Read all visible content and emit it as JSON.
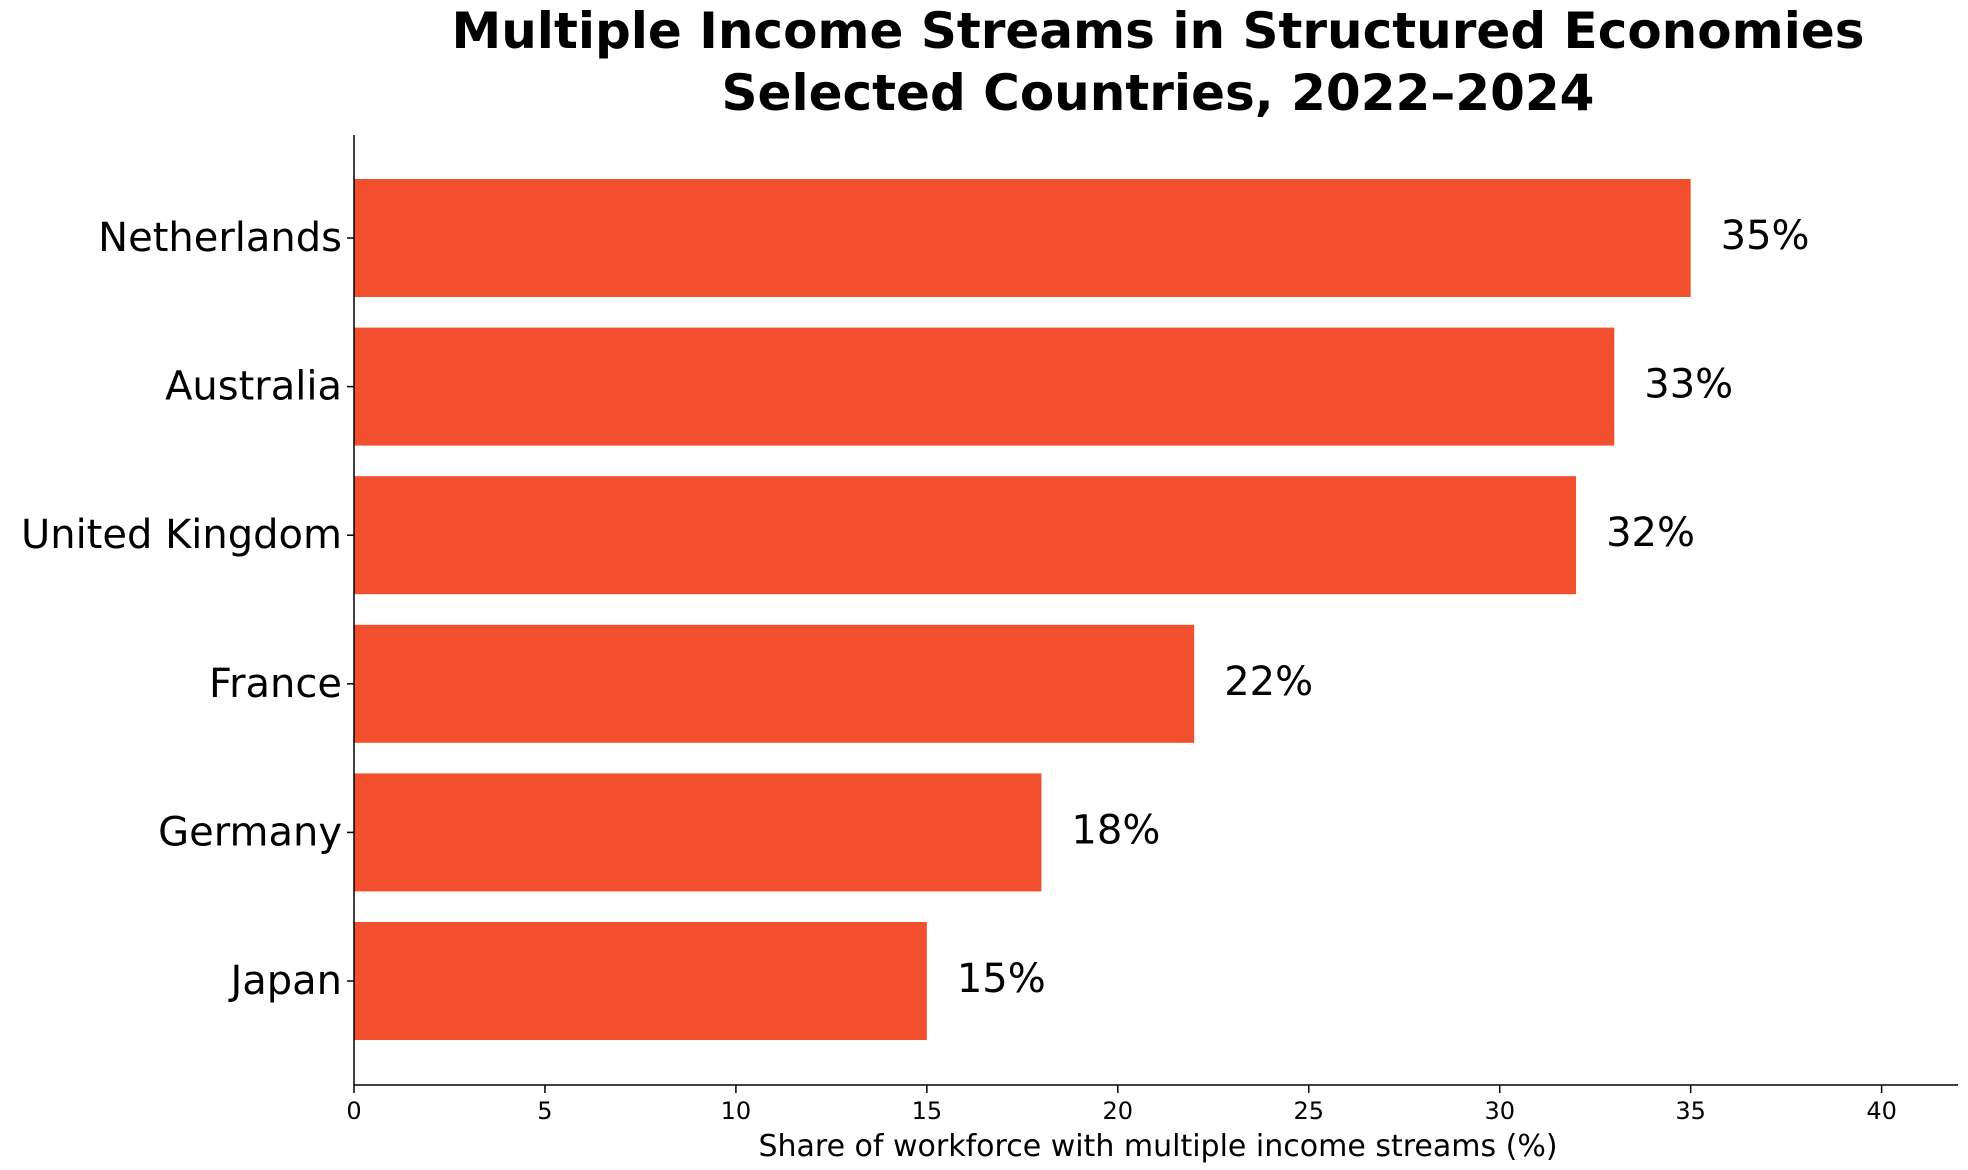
{
  "chart_data": {
    "type": "bar",
    "orientation": "horizontal",
    "title_lines": [
      "Multiple Income Streams in Structured Economies",
      "Selected Countries, 2022–2024"
    ],
    "xlabel": "Share of workforce with multiple income streams (%)",
    "ylabel": "",
    "categories": [
      "Netherlands",
      "Australia",
      "United Kingdom",
      "France",
      "Germany",
      "Japan"
    ],
    "values": [
      35,
      33,
      32,
      22,
      18,
      15
    ],
    "value_labels": [
      "35%",
      "33%",
      "32%",
      "22%",
      "18%",
      "15%"
    ],
    "xlim": [
      0,
      42
    ],
    "xticks": [
      0,
      5,
      10,
      15,
      20,
      25,
      30,
      35,
      40
    ],
    "xtick_labels": [
      "0",
      "5",
      "10",
      "15",
      "20",
      "25",
      "30",
      "35",
      "40"
    ],
    "bar_color": "#f24f2f",
    "grid": false,
    "legend": "none"
  }
}
